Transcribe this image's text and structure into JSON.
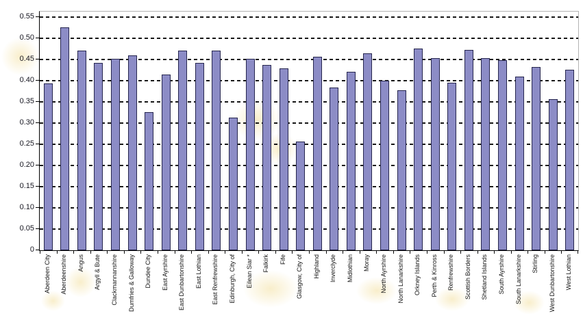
{
  "chart_data": {
    "type": "bar",
    "title": "",
    "xlabel": "",
    "ylabel": "",
    "categories": [
      "Aberdeen City",
      "Aberdeenshire",
      "Angus",
      "Argyll & Bute",
      "Clackmannanshire",
      "Dumfries & Galloway",
      "Dundee City",
      "East Ayrshire",
      "East Dunbartonshire",
      "East Lothian",
      "East Renfrewshire",
      "Edinburgh, City of",
      "Eilean Siar *",
      "Falkirk",
      "Fife",
      "Glasgow, City of",
      "Highland",
      "Inverclyde",
      "Midlothian",
      "Moray",
      "North Ayrshire",
      "North Lanarkshire",
      "Orkney Islands",
      "Perth & Kinross",
      "Renfrewshire",
      "Scottish Borders",
      "Shetland Islands",
      "South Ayrshire",
      "South Lanarkshire",
      "Stirling",
      "West Dunbartonshire",
      "West Lothian"
    ],
    "values": [
      0.394,
      0.525,
      0.471,
      0.441,
      0.451,
      0.46,
      0.326,
      0.414,
      0.471,
      0.442,
      0.47,
      0.313,
      0.452,
      0.437,
      0.429,
      0.257,
      0.456,
      0.384,
      0.421,
      0.464,
      0.4,
      0.377,
      0.475,
      0.453,
      0.395,
      0.472,
      0.453,
      0.448,
      0.41,
      0.432,
      0.357,
      0.426
    ],
    "ylim": [
      0,
      0.5625
    ],
    "yticks": [
      0,
      0.05,
      0.1,
      0.15,
      0.2,
      0.25,
      0.3,
      0.35,
      0.4,
      0.45,
      0.5,
      0.55
    ],
    "ytick_labels": [
      "0",
      "0.05",
      "0.10",
      "0.15",
      "0.20",
      "0.25",
      "0.30",
      "0.35",
      "0.40",
      "0.45",
      "0.50",
      "0.55"
    ],
    "grid": "horizontal-dashed",
    "legend": "none",
    "bar_orientation": "vertical"
  },
  "colors": {
    "bar_fill": "#8C8CC6",
    "bar_border": "#26264E",
    "gridline": "#151515",
    "plot_border": "#b3b3b3",
    "axis": "#000000",
    "tick_text": "#15151f"
  }
}
